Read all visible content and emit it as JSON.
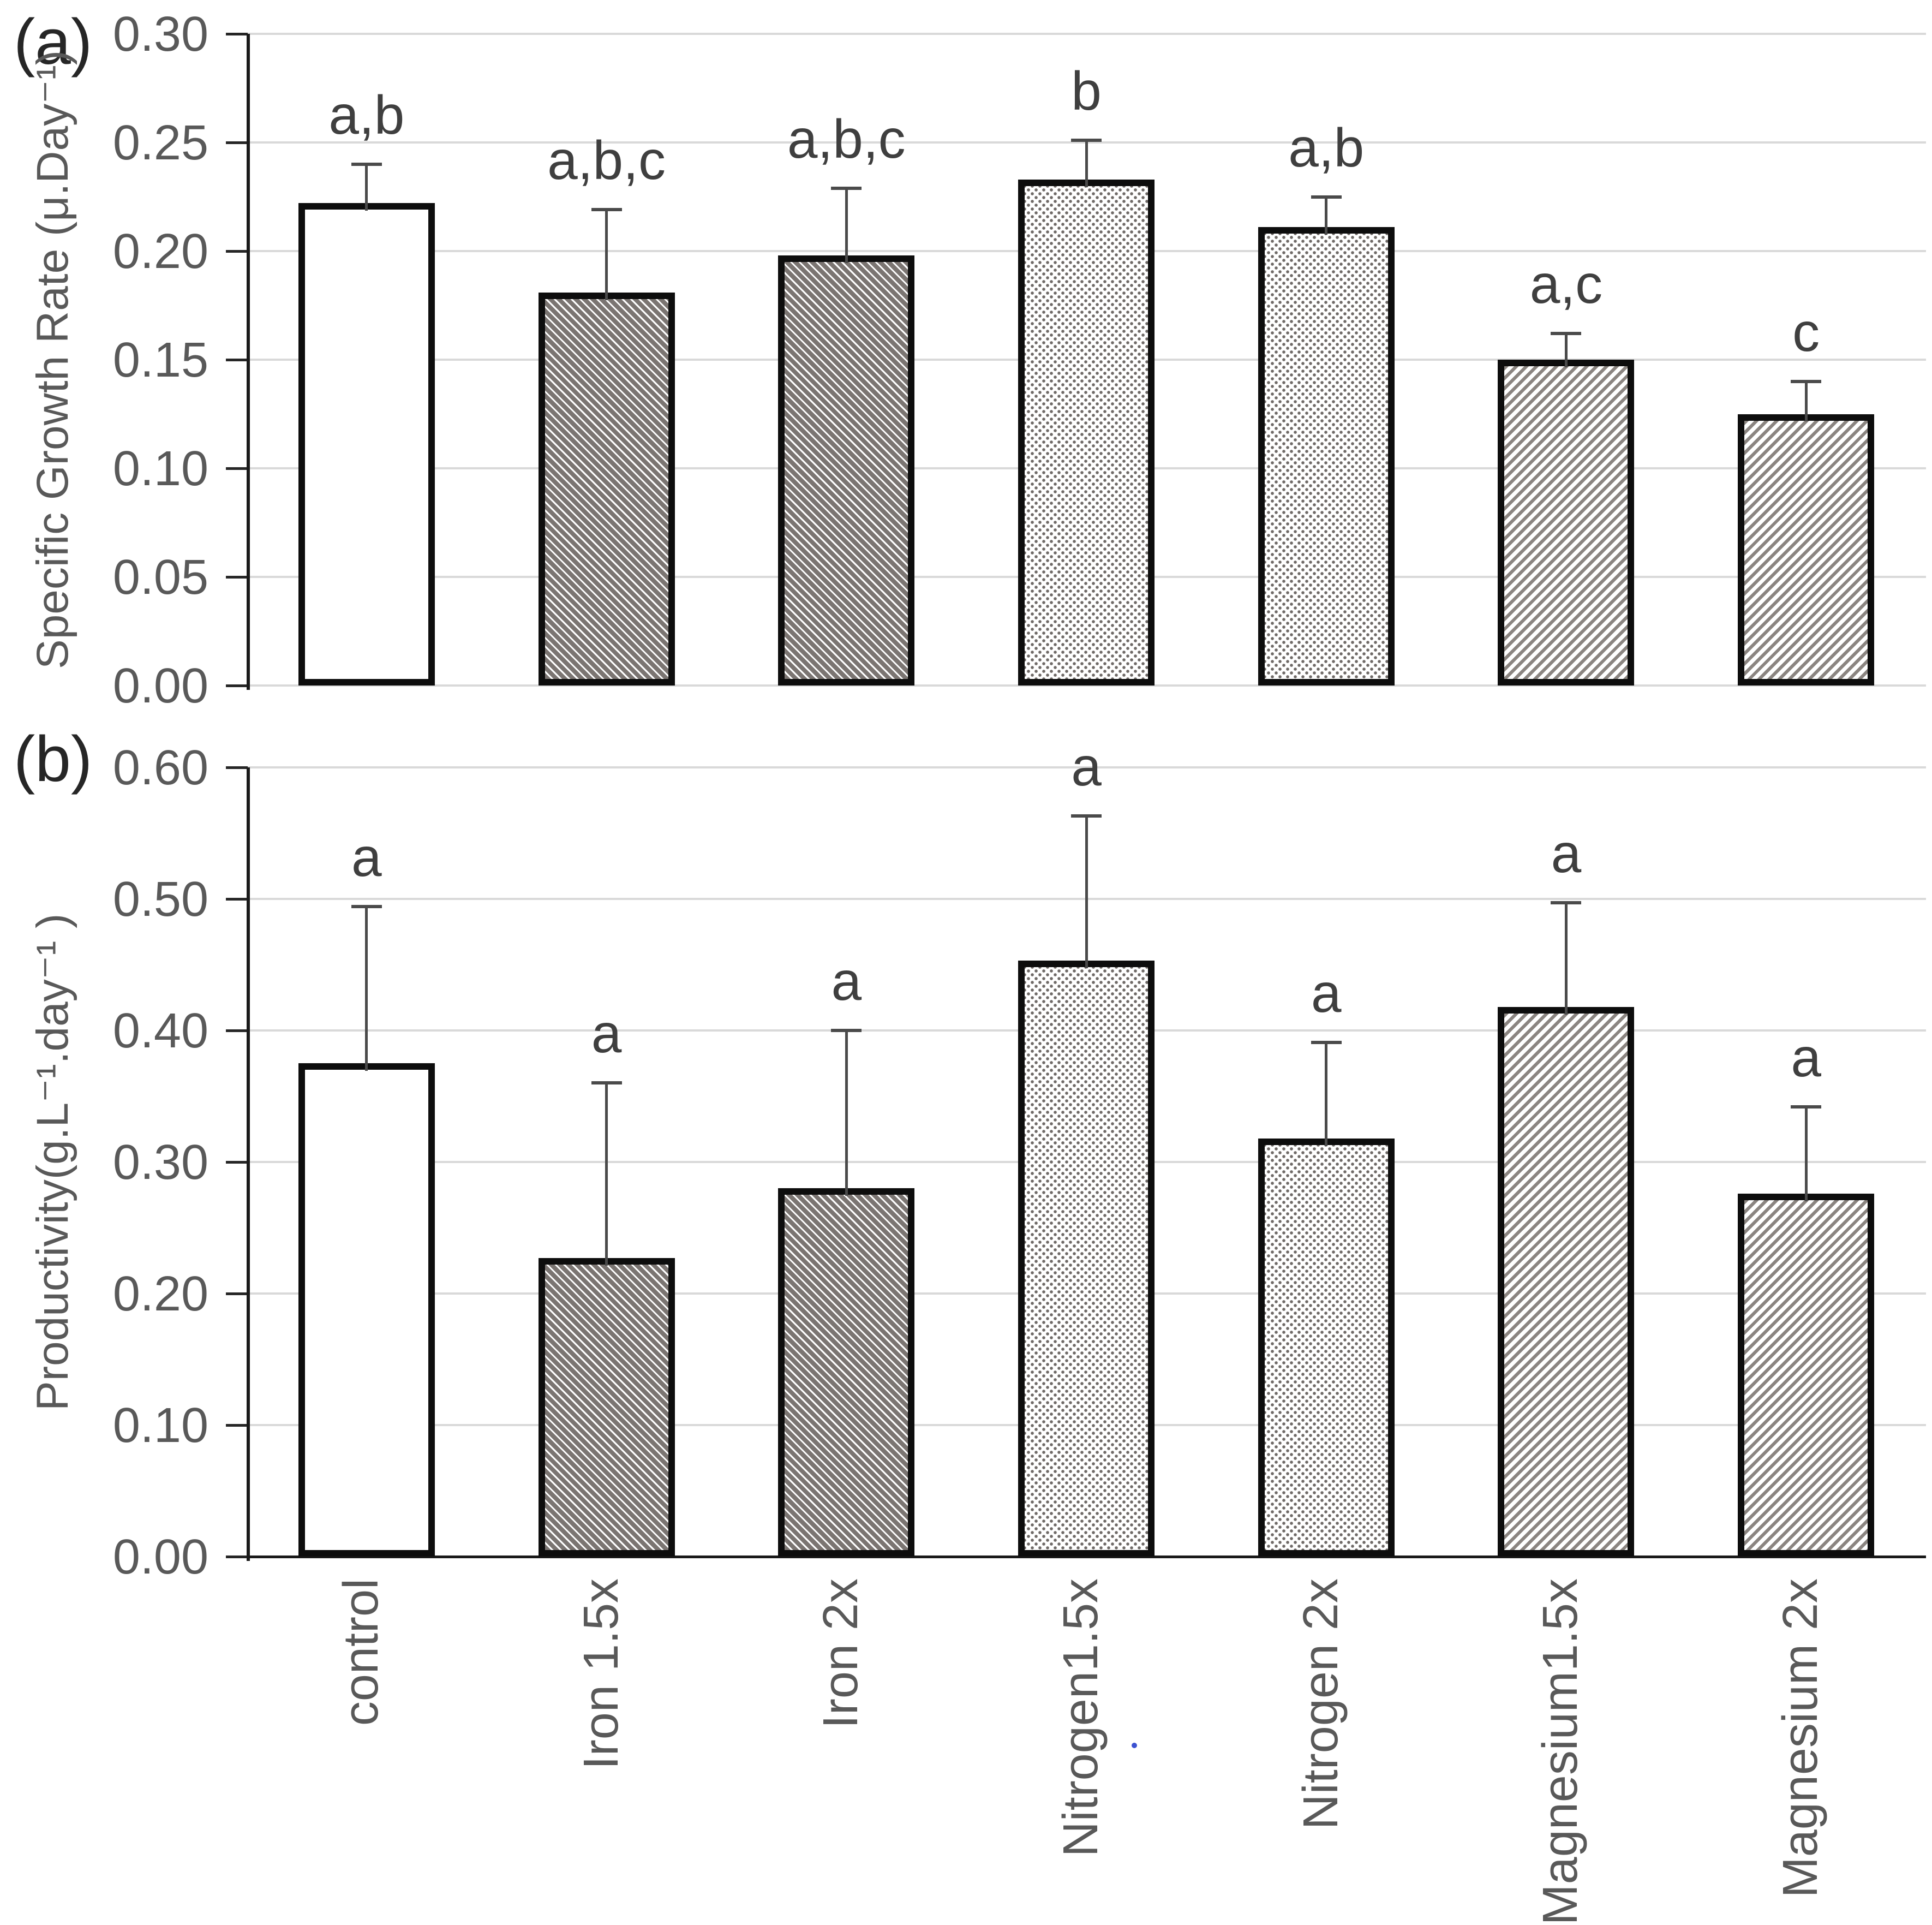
{
  "figure": {
    "panel_a_letter": "(a)",
    "panel_b_letter": "(b)",
    "background": "#ffffff"
  },
  "colors": {
    "text_gray": "#595959",
    "sig_text": "#3f3f3f",
    "gridline": "#d9d9d9",
    "axis_black": "#1a1a1a",
    "bar_border": "#0d0d0d",
    "error_bar": "#4a4a4a",
    "iron_fill": "#7b7572",
    "iron_stripe": "#ffffff",
    "nitrogen_dot": "#6f6a67",
    "magnesium_stripe": "#8b8581",
    "artifact_blue": "#3c52d1"
  },
  "chart_data": [
    {
      "panel_label": "(a)",
      "type": "bar",
      "title": "",
      "xlabel": "",
      "ylabel": "Specific Growth Rate (μ.Day⁻¹)",
      "ylim": [
        0,
        0.3
      ],
      "ytick_step": 0.05,
      "ytick_labels": [
        "0.30",
        "0.25",
        "0.20",
        "0.15",
        "0.10",
        "0.05",
        "0.00"
      ],
      "grid": true,
      "legend_position": "none",
      "show_category_labels": false,
      "x_axis_line": false,
      "categories": [
        "control",
        "Iron 1.5x",
        "Iron 2x",
        "Nitrogen1.5x",
        "Nitrogen 2x",
        "Magnesium1.5x",
        "Magnesium 2x"
      ],
      "series": [
        {
          "name": "Specific Growth Rate",
          "values": [
            0.222,
            0.181,
            0.198,
            0.233,
            0.211,
            0.15,
            0.125
          ],
          "error_tops": [
            0.24,
            0.219,
            0.229,
            0.251,
            0.225,
            0.162,
            0.14
          ],
          "sig_letters": [
            "a,b",
            "a,b,c",
            "a,b,c",
            "b",
            "a,b",
            "a,c",
            "c"
          ],
          "patterns": [
            "solid-white",
            "dark-diagonal-down",
            "dark-diagonal-down",
            "gray-dots",
            "gray-dots",
            "light-diagonal-up",
            "light-diagonal-up"
          ]
        }
      ]
    },
    {
      "panel_label": "(b)",
      "type": "bar",
      "title": "",
      "xlabel": "",
      "ylabel": "Productivity(g.L⁻¹.day⁻¹ )",
      "ylim": [
        0,
        0.6
      ],
      "ytick_step": 0.1,
      "ytick_labels": [
        "0.60",
        "0.50",
        "0.40",
        "0.30",
        "0.20",
        "0.10",
        "0.00"
      ],
      "grid": true,
      "legend_position": "none",
      "show_category_labels": true,
      "x_axis_line": true,
      "categories": [
        "control",
        "Iron 1.5x",
        "Iron 2x",
        "Nitrogen1.5x",
        "Nitrogen 2x",
        "Magnesium1.5x",
        "Magnesium 2x"
      ],
      "series": [
        {
          "name": "Productivity",
          "values": [
            0.375,
            0.227,
            0.28,
            0.453,
            0.318,
            0.418,
            0.276
          ],
          "error_tops": [
            0.494,
            0.36,
            0.4,
            0.563,
            0.391,
            0.497,
            0.342
          ],
          "sig_letters": [
            "a",
            "a",
            "a",
            "a",
            "a",
            "a",
            "a"
          ],
          "patterns": [
            "solid-white",
            "dark-diagonal-down",
            "dark-diagonal-down",
            "gray-dots",
            "gray-dots",
            "light-diagonal-up",
            "light-diagonal-up"
          ]
        }
      ]
    }
  ],
  "artifact": {
    "note": "small blue dot between Nitrogen1.5x and Nitrogen 2x labels"
  }
}
